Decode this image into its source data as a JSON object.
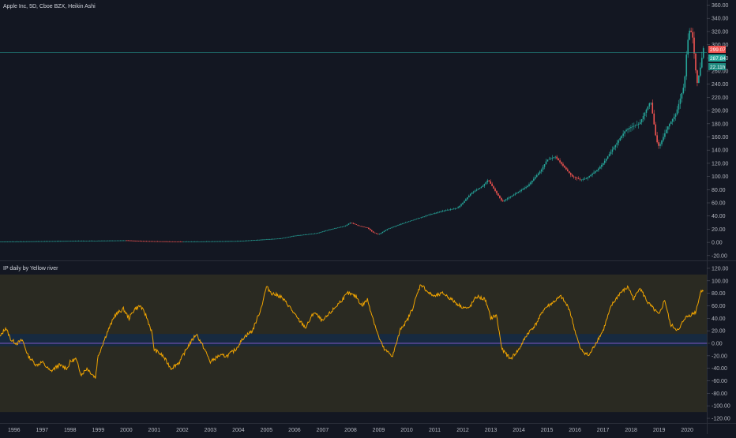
{
  "header": {
    "symbol_label": "Apple Inc, 5D, Cboe BZX, Heikin Ashi"
  },
  "indicator": {
    "label": "IP daily by Yellow river"
  },
  "colors": {
    "background": "#131722",
    "up": "#26a69a",
    "down": "#ef5350",
    "oscillator_line": "#f0a400",
    "zero_line": "#7e57c2",
    "crosshair": "#26a69a",
    "outer_band": "#2a2a22",
    "inner_band": "#172a40",
    "grid": "#1e222d"
  },
  "price_badges": {
    "red": "299.07",
    "green": "287.84",
    "teal": "22.11h"
  },
  "chart_data": [
    {
      "type": "candlestick",
      "title": "Apple Inc, 5D, Cboe BZX, Heikin Ashi",
      "yticks": [
        "360.00",
        "340.00",
        "320.00",
        "300.00",
        "280.00",
        "260.00",
        "240.00",
        "220.00",
        "200.00",
        "180.00",
        "160.00",
        "140.00",
        "120.00",
        "100.00",
        "80.00",
        "60.00",
        "40.00",
        "20.00",
        "0.00",
        "-20.00"
      ],
      "ylim": [
        -25,
        363
      ],
      "xlim": [
        1995.5,
        2020.7
      ],
      "crosshair_value": 287.84,
      "series": [
        {
          "x": [
            1995.5,
            2000.0,
            2000.5,
            2002.0,
            2004.0,
            2004.8,
            2005.5,
            2006.0,
            2006.8,
            2007.3,
            2007.8,
            2008.0,
            2008.3,
            2008.6,
            2008.8,
            2009.0,
            2009.3,
            2009.8,
            2010.3,
            2010.8,
            2011.3,
            2011.8,
            2012.0,
            2012.3,
            2012.7,
            2012.9,
            2013.2,
            2013.4,
            2013.8,
            2014.3,
            2014.8,
            2015.0,
            2015.3,
            2015.6,
            2015.9,
            2016.2,
            2016.4,
            2016.8,
            2017.0,
            2017.4,
            2017.8,
            2018.0,
            2018.3,
            2018.7,
            2018.9,
            2019.0,
            2019.3,
            2019.6,
            2019.9,
            2020.0,
            2020.1,
            2020.2,
            2020.35,
            2020.45,
            2020.6
          ],
          "values": [
            1,
            3,
            2,
            1,
            2,
            4,
            6,
            10,
            14,
            20,
            25,
            30,
            25,
            22,
            15,
            12,
            20,
            28,
            35,
            42,
            48,
            52,
            60,
            75,
            85,
            95,
            75,
            62,
            72,
            85,
            110,
            125,
            130,
            115,
            100,
            95,
            97,
            110,
            120,
            145,
            170,
            175,
            180,
            215,
            155,
            145,
            175,
            195,
            240,
            300,
            325,
            310,
            240,
            260,
            300
          ]
        }
      ]
    },
    {
      "type": "line",
      "title": "IP daily by Yellow river",
      "yticks": [
        "120.00",
        "100.00",
        "80.00",
        "60.00",
        "40.00",
        "20.00",
        "0.00",
        "-20.00",
        "-40.00",
        "-60.00",
        "-80.00",
        "-100.00",
        "-120.00"
      ],
      "ylim": [
        -125,
        125
      ],
      "xlim": [
        1995.5,
        2020.7
      ],
      "xticks": [
        "1996",
        "1997",
        "1998",
        "1999",
        "2000",
        "2001",
        "2002",
        "2003",
        "2004",
        "2005",
        "2006",
        "2007",
        "2008",
        "2009",
        "2010",
        "2011",
        "2012",
        "2013",
        "2014",
        "2015",
        "2016",
        "2017",
        "2018",
        "2019",
        "2020"
      ],
      "bands": [
        [
          -110,
          110
        ],
        [
          -5,
          15
        ]
      ],
      "zero_line": 0,
      "series": [
        {
          "x": [
            1995.5,
            1995.7,
            1995.9,
            1996.1,
            1996.3,
            1996.5,
            1996.8,
            1997.0,
            1997.3,
            1997.6,
            1997.9,
            1998.0,
            1998.2,
            1998.4,
            1998.6,
            1998.9,
            1999.0,
            1999.3,
            1999.6,
            1999.9,
            2000.1,
            2000.3,
            2000.5,
            2000.7,
            2000.9,
            2001.0,
            2001.3,
            2001.6,
            2001.9,
            2002.2,
            2002.5,
            2002.8,
            2003.0,
            2003.3,
            2003.6,
            2003.9,
            2004.2,
            2004.5,
            2004.8,
            2005.0,
            2005.2,
            2005.5,
            2005.8,
            2006.1,
            2006.4,
            2006.7,
            2007.0,
            2007.3,
            2007.6,
            2007.9,
            2008.2,
            2008.4,
            2008.6,
            2008.8,
            2009.0,
            2009.2,
            2009.5,
            2009.8,
            2010.0,
            2010.2,
            2010.5,
            2010.8,
            2011.0,
            2011.3,
            2011.6,
            2011.9,
            2012.2,
            2012.5,
            2012.8,
            2013.0,
            2013.2,
            2013.4,
            2013.7,
            2014.0,
            2014.3,
            2014.6,
            2014.9,
            2015.2,
            2015.5,
            2015.8,
            2016.0,
            2016.2,
            2016.5,
            2016.8,
            2017.0,
            2017.3,
            2017.6,
            2017.9,
            2018.1,
            2018.3,
            2018.6,
            2018.9,
            2019.0,
            2019.2,
            2019.4,
            2019.7,
            2019.9,
            2020.1,
            2020.3,
            2020.5,
            2020.6
          ],
          "values": [
            10,
            25,
            5,
            0,
            5,
            -20,
            -35,
            -30,
            -45,
            -35,
            -40,
            -30,
            -25,
            -50,
            -40,
            -55,
            -20,
            15,
            45,
            55,
            40,
            55,
            60,
            45,
            20,
            -10,
            -20,
            -40,
            -30,
            -5,
            15,
            -10,
            -30,
            -20,
            -20,
            -10,
            10,
            20,
            55,
            90,
            80,
            75,
            60,
            40,
            25,
            50,
            35,
            50,
            65,
            80,
            75,
            60,
            70,
            40,
            10,
            -10,
            -20,
            25,
            35,
            55,
            95,
            80,
            75,
            80,
            70,
            60,
            55,
            75,
            70,
            40,
            45,
            -10,
            -25,
            -10,
            15,
            30,
            55,
            65,
            75,
            55,
            20,
            -10,
            -20,
            5,
            20,
            60,
            80,
            90,
            70,
            90,
            65,
            50,
            45,
            70,
            30,
            20,
            40,
            45,
            50,
            85,
            85
          ]
        }
      ]
    }
  ]
}
